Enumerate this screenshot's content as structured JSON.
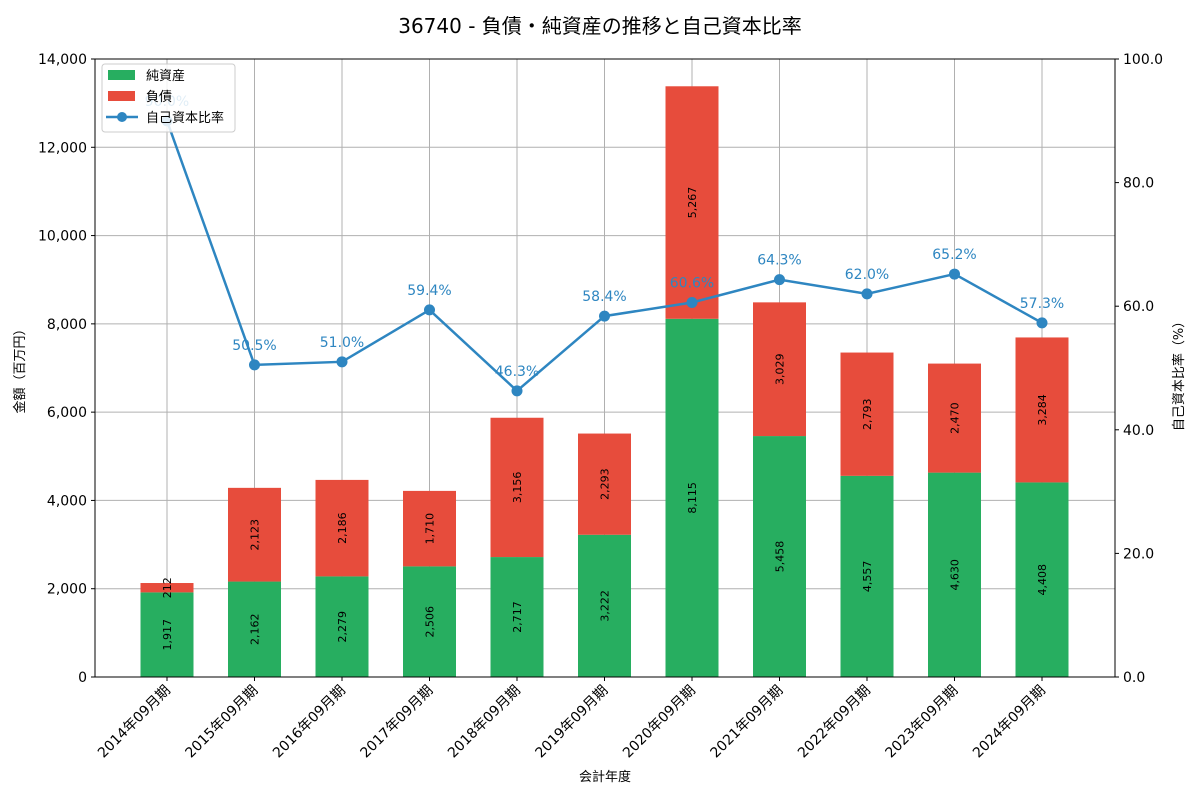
{
  "chart_data": {
    "type": "bar",
    "stacked": true,
    "title": "36740 - 負債・純資産の推移と自己資本比率",
    "xlabel": "会計年度",
    "ylabel": "金額（百万円）",
    "y2label": "自己資本比率（%）",
    "ylim": [
      0,
      14000
    ],
    "y2lim": [
      0,
      100
    ],
    "yticks": [
      "0",
      "2,000",
      "4,000",
      "6,000",
      "8,000",
      "10,000",
      "12,000",
      "14,000"
    ],
    "y2ticks": [
      "0.0",
      "20.0",
      "40.0",
      "60.0",
      "80.0",
      "100.0"
    ],
    "grid": true,
    "legend_position": "upper left",
    "categories": [
      "2014年09月期",
      "2015年09月期",
      "2016年09月期",
      "2017年09月期",
      "2018年09月期",
      "2019年09月期",
      "2020年09月期",
      "2021年09月期",
      "2022年09月期",
      "2023年09月期",
      "2024年09月期"
    ],
    "series": [
      {
        "name": "純資産",
        "type": "bar",
        "color": "#27ae60",
        "values": [
          1917,
          2162,
          2279,
          2506,
          2717,
          3222,
          8115,
          5458,
          4557,
          4630,
          4408
        ],
        "labels": [
          "1,917",
          "2,162",
          "2,279",
          "2,506",
          "2,717",
          "3,222",
          "8,115",
          "5,458",
          "4,557",
          "4,630",
          "4,408"
        ]
      },
      {
        "name": "負債",
        "type": "bar",
        "color": "#e74c3c",
        "values": [
          212,
          2123,
          2186,
          1710,
          3156,
          2293,
          5267,
          3029,
          2793,
          2470,
          3284
        ],
        "labels": [
          "212",
          "2,123",
          "2,186",
          "1,710",
          "3,156",
          "2,293",
          "5,267",
          "3,029",
          "2,793",
          "2,470",
          "3,284"
        ]
      },
      {
        "name": "自己資本比率",
        "type": "line",
        "axis": "right",
        "color": "#2e86c1",
        "values": [
          90.0,
          50.5,
          51.0,
          59.4,
          46.3,
          58.4,
          60.6,
          64.3,
          62.0,
          65.2,
          57.3
        ],
        "labels": [
          "90.0%",
          "50.5%",
          "51.0%",
          "59.4%",
          "46.3%",
          "58.4%",
          "60.6%",
          "64.3%",
          "62.0%",
          "65.2%",
          "57.3%"
        ]
      }
    ]
  }
}
